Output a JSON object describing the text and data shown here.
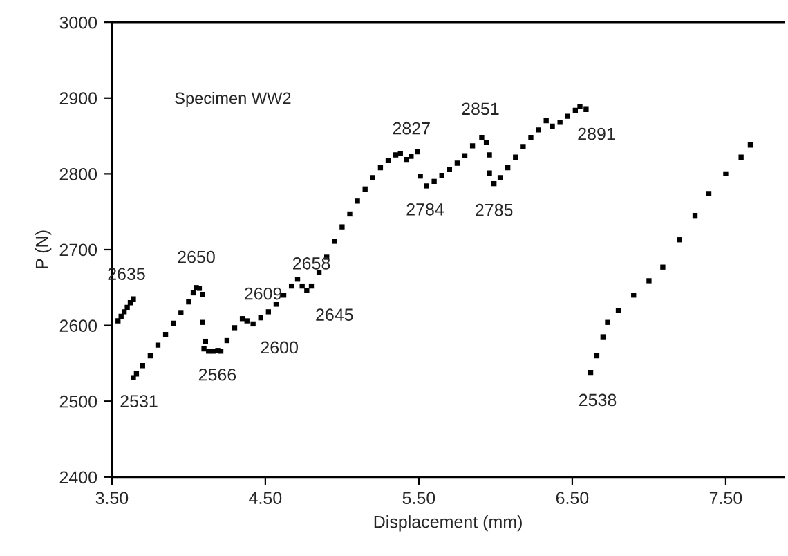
{
  "chart_data": {
    "type": "scatter",
    "xlabel": "Displacement (mm)",
    "ylabel": "P (N)",
    "xlim": [
      3.5,
      7.88
    ],
    "xticks": [
      {
        "value": 3.5,
        "label": "3.50"
      },
      {
        "value": 4.5,
        "label": "4.50"
      },
      {
        "value": 5.5,
        "label": "5.50"
      },
      {
        "value": 6.5,
        "label": "6.50"
      },
      {
        "value": 7.5,
        "label": "7.50"
      }
    ],
    "ylim": [
      2400,
      3000
    ],
    "yticks": [
      2400,
      2500,
      2600,
      2700,
      2800,
      2900,
      3000
    ],
    "grid": false,
    "legend": false,
    "marker": "square",
    "series": [
      {
        "color": "#000000",
        "x": [
          3.54,
          3.56,
          3.58,
          3.6,
          3.62,
          3.64
        ],
        "values": [
          2606,
          2612,
          2618,
          2624,
          2630,
          2635
        ]
      },
      {
        "color": "#000000",
        "x": [
          3.64,
          3.66,
          3.7,
          3.75,
          3.8,
          3.85,
          3.9,
          3.95,
          4.0,
          4.03,
          4.05,
          4.07,
          4.09
        ],
        "values": [
          2531,
          2536,
          2547,
          2560,
          2574,
          2588,
          2603,
          2617,
          2631,
          2643,
          2650,
          2649,
          2641
        ]
      },
      {
        "color": "#000000",
        "x": [
          4.09,
          4.11
        ],
        "values": [
          2604,
          2579
        ]
      },
      {
        "color": "#000000",
        "x": [
          4.1,
          4.13,
          4.16,
          4.19,
          4.21,
          4.25,
          4.3,
          4.35,
          4.38,
          4.42,
          4.47,
          4.52,
          4.57,
          4.62,
          4.67,
          4.71,
          4.74,
          4.77,
          4.8,
          4.85,
          4.9,
          4.95,
          5.0,
          5.05,
          5.1,
          5.15,
          5.2,
          5.25,
          5.3,
          5.35,
          5.38,
          5.42,
          5.45,
          5.49
        ],
        "values": [
          2569,
          2566,
          2566,
          2567,
          2566,
          2580,
          2597,
          2609,
          2606,
          2602,
          2610,
          2618,
          2628,
          2640,
          2652,
          2661,
          2652,
          2646,
          2652,
          2670,
          2690,
          2711,
          2730,
          2747,
          2764,
          2780,
          2795,
          2808,
          2818,
          2825,
          2827,
          2819,
          2823,
          2829
        ]
      },
      {
        "color": "#000000",
        "x": [
          5.51,
          5.55,
          5.6,
          5.65,
          5.7,
          5.75,
          5.8,
          5.85,
          5.91,
          5.94
        ],
        "values": [
          2797,
          2784,
          2790,
          2798,
          2806,
          2814,
          2824,
          2837,
          2848,
          2841
        ]
      },
      {
        "color": "#000000",
        "x": [
          5.96
        ],
        "values": [
          2825
        ]
      },
      {
        "color": "#000000",
        "x": [
          5.96,
          5.99,
          6.03,
          6.08,
          6.13,
          6.18,
          6.23,
          6.28,
          6.33,
          6.37,
          6.42,
          6.47,
          6.52,
          6.55,
          6.59
        ],
        "values": [
          2801,
          2787,
          2795,
          2808,
          2822,
          2836,
          2848,
          2858,
          2870,
          2863,
          2868,
          2876,
          2884,
          2889,
          2885
        ]
      },
      {
        "color": "#000000",
        "x": [
          6.62,
          6.66,
          6.7,
          6.73,
          6.8,
          6.9,
          7.0,
          7.09,
          7.2,
          7.3,
          7.39,
          7.5,
          7.6,
          7.66
        ],
        "values": [
          2538,
          2560,
          2585,
          2604,
          2620,
          2640,
          2659,
          2677,
          2713,
          2745,
          2774,
          2800,
          2822,
          2838
        ]
      }
    ],
    "annotations": [
      "Specimen WW2",
      {
        "text": "2635",
        "x": 3.64,
        "y": 2635
      },
      {
        "text": "2531",
        "x": 3.64,
        "y": 2531
      },
      {
        "text": "2650",
        "x": 4.05,
        "y": 2650
      },
      {
        "text": "2566",
        "x": 4.16,
        "y": 2566
      },
      {
        "text": "2609",
        "x": 4.35,
        "y": 2609
      },
      {
        "text": "2600",
        "x": 4.42,
        "y": 2600
      },
      {
        "text": "2658",
        "x": 4.71,
        "y": 2658
      },
      {
        "text": "2645",
        "x": 4.77,
        "y": 2645
      },
      {
        "text": "2827",
        "x": 5.38,
        "y": 2827
      },
      {
        "text": "2784",
        "x": 5.55,
        "y": 2784
      },
      {
        "text": "2851",
        "x": 5.91,
        "y": 2851
      },
      {
        "text": "2785",
        "x": 5.99,
        "y": 2785
      },
      {
        "text": "2891",
        "x": 6.55,
        "y": 2891
      },
      {
        "text": "2538",
        "x": 6.62,
        "y": 2538
      }
    ]
  }
}
